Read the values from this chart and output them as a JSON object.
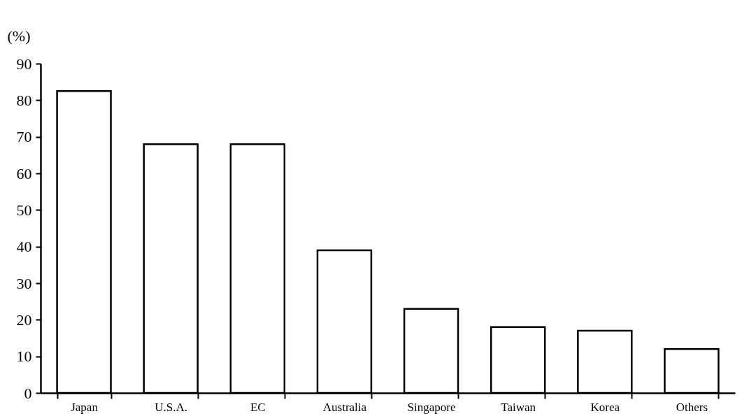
{
  "chart_data": {
    "type": "bar",
    "ylabel": "(%)",
    "categories": [
      "Japan",
      "U.S.A.",
      "EC",
      "Australia",
      "Singapore",
      "Taiwan",
      "Korea",
      "Others"
    ],
    "values": [
      82.5,
      68,
      68,
      39,
      23,
      18,
      17,
      12
    ],
    "color": "#ffffff",
    "ylim": [
      0,
      90
    ],
    "yticks": [
      0,
      10,
      20,
      30,
      40,
      50,
      60,
      70,
      80,
      90
    ],
    "grid": false
  }
}
